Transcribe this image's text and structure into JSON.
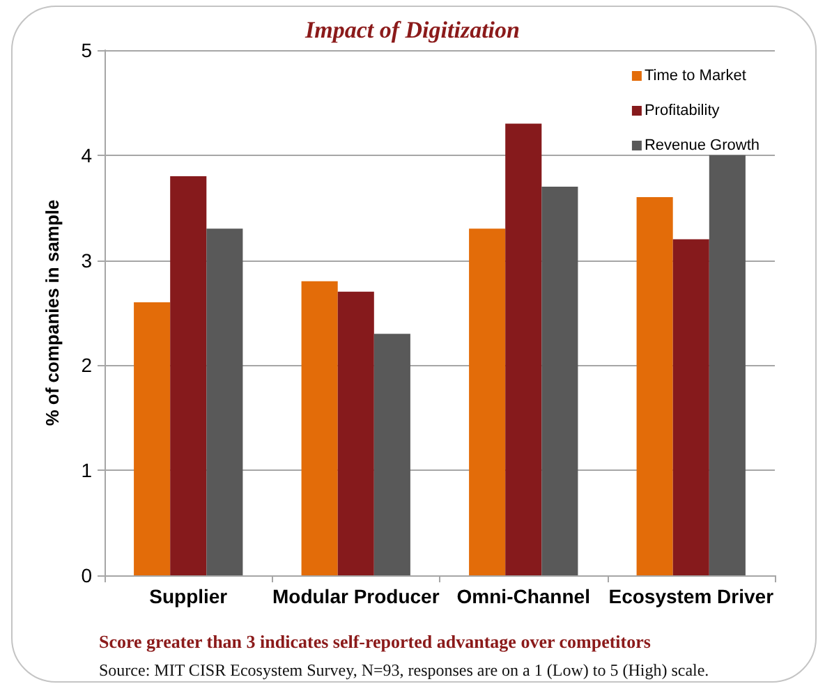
{
  "chart_data": {
    "type": "bar",
    "title": "Impact of Digitization",
    "ylabel": "% of companies in sample",
    "categories": [
      "Supplier",
      "Modular Producer",
      "Omni-Channel",
      "Ecosystem Driver"
    ],
    "series": [
      {
        "name": "Time to Market",
        "color": "#e36c09",
        "values": [
          2.6,
          2.8,
          3.3,
          3.6
        ]
      },
      {
        "name": "Profitability",
        "color": "#861a1c",
        "values": [
          3.8,
          2.7,
          4.3,
          3.2
        ]
      },
      {
        "name": "Revenue Growth",
        "color": "#595959",
        "values": [
          3.3,
          2.3,
          3.7,
          4.0
        ]
      }
    ],
    "ylim": [
      0,
      5
    ],
    "yticks": [
      0,
      1,
      2,
      3,
      4,
      5
    ],
    "grid": "y",
    "legend": "top right",
    "annotations": [
      "Score greater than 3 indicates self-reported advantage over competitors",
      "Source: MIT CISR Ecosystem Survey, N=93, responses are on a 1 (Low) to 5 (High) scale."
    ]
  }
}
